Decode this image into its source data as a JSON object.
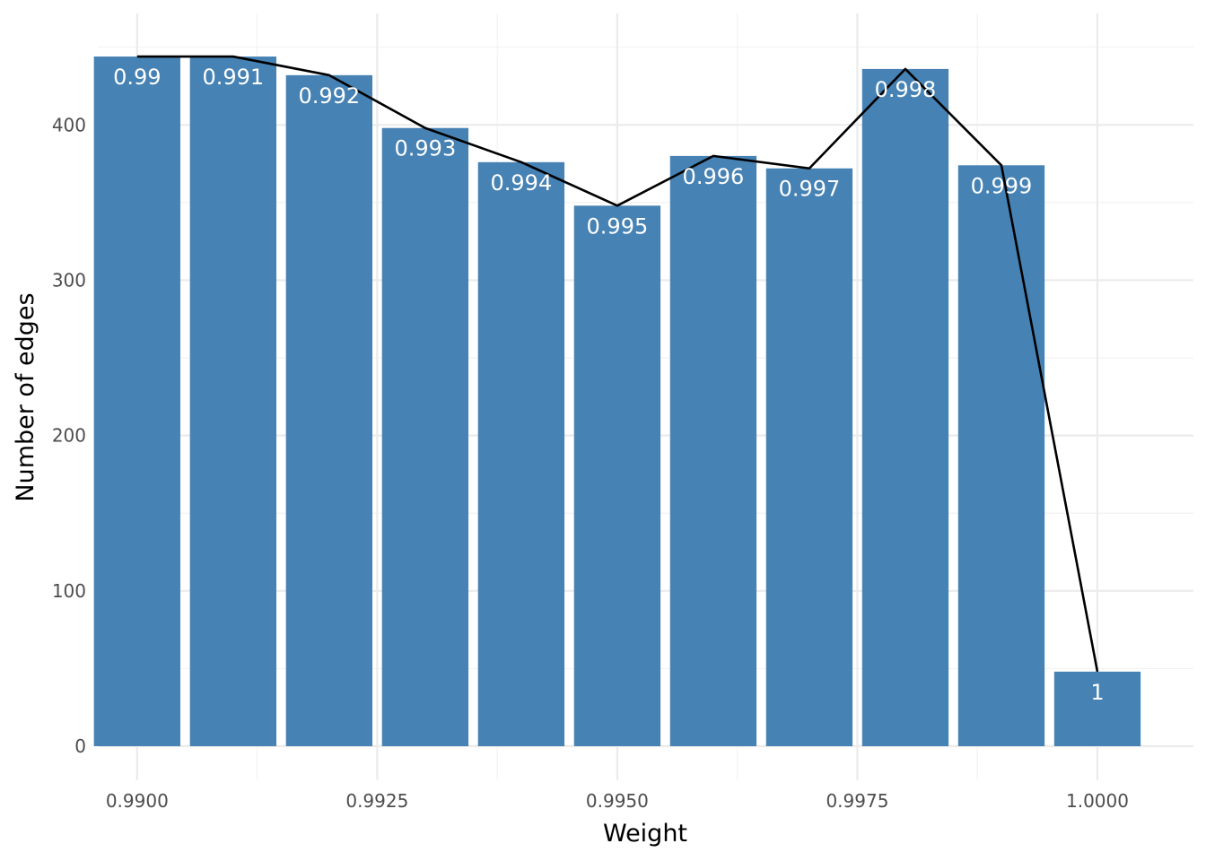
{
  "chart_data": {
    "type": "bar",
    "xlabel": "Weight",
    "ylabel": "Number of edges",
    "xlim": [
      0.9896,
      1.001
    ],
    "ylim": [
      0,
      455
    ],
    "x_ticks": [
      0.99,
      0.9925,
      0.995,
      0.9975,
      1.0
    ],
    "x_tick_labels": [
      "0.9900",
      "0.9925",
      "0.9950",
      "0.9975",
      "1.0000"
    ],
    "y_ticks": [
      0,
      100,
      200,
      300,
      400
    ],
    "y_tick_labels": [
      "0",
      "100",
      "200",
      "300",
      "400"
    ],
    "grid": true,
    "bar_color": "#4682b4",
    "line_color": "#000000",
    "x": [
      0.99,
      0.991,
      0.992,
      0.993,
      0.994,
      0.995,
      0.996,
      0.997,
      0.998,
      0.999,
      1.0
    ],
    "bar_labels": [
      "0.99",
      "0.991",
      "0.992",
      "0.993",
      "0.994",
      "0.995",
      "0.996",
      "0.997",
      "0.998",
      "0.999",
      "1"
    ],
    "values": [
      444,
      444,
      432,
      398,
      376,
      348,
      380,
      372,
      436,
      374,
      48
    ]
  }
}
